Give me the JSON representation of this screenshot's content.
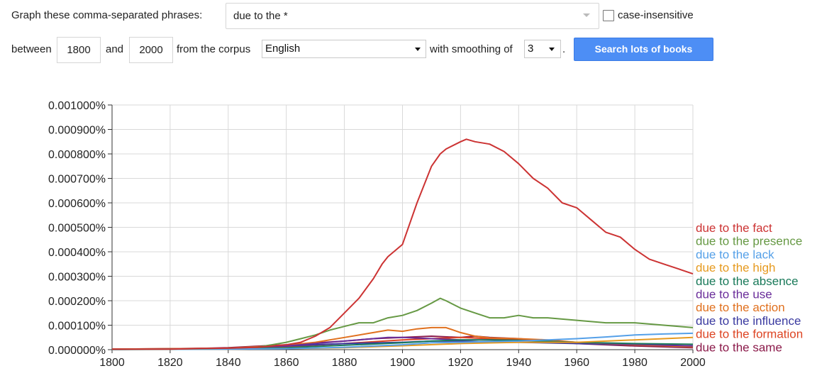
{
  "form": {
    "phrases_label": "Graph these comma-separated phrases:",
    "phrases_value": "due to the *",
    "case_label": "case-insensitive",
    "between_label": "between",
    "start_year": "1800",
    "and_label": "and",
    "end_year": "2000",
    "corpus_label": "from the corpus",
    "corpus_value": "English",
    "smoothing_label": "with smoothing of",
    "smoothing_value": "3",
    "period": ".",
    "search_button": "Search lots of books"
  },
  "chart_data": {
    "type": "line",
    "title": "",
    "xlabel": "",
    "ylabel": "",
    "xlim": [
      1800,
      2000
    ],
    "ylim": [
      0,
      0.001
    ],
    "grid": true,
    "legend_placement": "right",
    "x_ticks": [
      "1800",
      "1820",
      "1840",
      "1860",
      "1880",
      "1900",
      "1920",
      "1940",
      "1960",
      "1980",
      "2000"
    ],
    "y_ticks": [
      "0.000000%",
      "0.000100%",
      "0.000200%",
      "0.000300%",
      "0.000400%",
      "0.000500%",
      "0.000600%",
      "0.000700%",
      "0.000800%",
      "0.000900%",
      "0.001000%"
    ],
    "series": [
      {
        "name": "due to the fact",
        "color": "#cc3333",
        "x": [
          1800,
          1820,
          1830,
          1840,
          1850,
          1860,
          1865,
          1870,
          1875,
          1880,
          1885,
          1890,
          1893,
          1895,
          1900,
          1905,
          1910,
          1913,
          1915,
          1920,
          1922,
          1925,
          1930,
          1935,
          1940,
          1945,
          1950,
          1955,
          1960,
          1965,
          1970,
          1975,
          1980,
          1985,
          1990,
          1995,
          2000
        ],
        "y": [
          2e-06,
          2e-06,
          5e-06,
          6e-06,
          1e-05,
          2e-05,
          3e-05,
          5.5e-05,
          9e-05,
          0.00015,
          0.00021,
          0.00029,
          0.00035,
          0.00038,
          0.00043,
          0.0006,
          0.00075,
          0.0008,
          0.00082,
          0.00085,
          0.00086,
          0.00085,
          0.00084,
          0.00081,
          0.00076,
          0.0007,
          0.00066,
          0.0006,
          0.00058,
          0.00053,
          0.00048,
          0.00046,
          0.00041,
          0.00037,
          0.00035,
          0.00033,
          0.00031
        ]
      },
      {
        "name": "due to the presence",
        "color": "#669944",
        "x": [
          1800,
          1820,
          1840,
          1850,
          1860,
          1865,
          1870,
          1875,
          1880,
          1885,
          1890,
          1895,
          1900,
          1905,
          1910,
          1913,
          1915,
          1920,
          1925,
          1930,
          1935,
          1940,
          1945,
          1950,
          1960,
          1970,
          1980,
          1990,
          2000
        ],
        "y": [
          2e-06,
          2e-06,
          6e-06,
          1e-05,
          3e-05,
          4.5e-05,
          6e-05,
          8e-05,
          9.5e-05,
          0.00011,
          0.00011,
          0.00013,
          0.00014,
          0.00016,
          0.00019,
          0.00021,
          0.0002,
          0.00017,
          0.00015,
          0.00013,
          0.00013,
          0.00014,
          0.00013,
          0.00013,
          0.00012,
          0.00011,
          0.00011,
          0.0001,
          9e-05
        ]
      },
      {
        "name": "due to the lack",
        "color": "#55a0e8",
        "x": [
          1800,
          1840,
          1860,
          1880,
          1900,
          1910,
          1920,
          1930,
          1940,
          1950,
          1960,
          1970,
          1980,
          1990,
          2000
        ],
        "y": [
          1e-06,
          2e-06,
          4e-06,
          1e-05,
          2e-05,
          2.8e-05,
          3e-05,
          3.3e-05,
          3.5e-05,
          4e-05,
          4.5e-05,
          5.2e-05,
          6e-05,
          6.4e-05,
          6.7e-05
        ]
      },
      {
        "name": "due to the high",
        "color": "#e69a1f",
        "x": [
          1800,
          1840,
          1860,
          1880,
          1900,
          1920,
          1940,
          1960,
          1980,
          1990,
          2000
        ],
        "y": [
          1e-06,
          2e-06,
          4e-06,
          8e-06,
          1.6e-05,
          2.5e-05,
          3e-05,
          3e-05,
          4e-05,
          4.5e-05,
          5e-05
        ]
      },
      {
        "name": "due to the absence",
        "color": "#1a7a5a",
        "x": [
          1800,
          1840,
          1860,
          1880,
          1900,
          1910,
          1920,
          1930,
          1940,
          1960,
          1980,
          2000
        ],
        "y": [
          1e-06,
          3e-06,
          8e-06,
          1.8e-05,
          2.8e-05,
          3.5e-05,
          4e-05,
          4e-05,
          3.8e-05,
          3e-05,
          2.5e-05,
          2.2e-05
        ]
      },
      {
        "name": "due to the use",
        "color": "#6a2d9a",
        "x": [
          1800,
          1840,
          1860,
          1880,
          1895,
          1900,
          1910,
          1920,
          1930,
          1940,
          1960,
          1980,
          2000
        ],
        "y": [
          1e-06,
          5e-06,
          1.5e-05,
          3.5e-05,
          5e-05,
          5e-05,
          4.5e-05,
          4e-05,
          4e-05,
          3.8e-05,
          3e-05,
          2.2e-05,
          1.5e-05
        ]
      },
      {
        "name": "due to the action",
        "color": "#e0701e",
        "x": [
          1800,
          1840,
          1860,
          1870,
          1880,
          1890,
          1895,
          1900,
          1905,
          1910,
          1915,
          1920,
          1925,
          1930,
          1940,
          1950,
          1960,
          1980,
          2000
        ],
        "y": [
          2e-06,
          6e-06,
          1.8e-05,
          3e-05,
          5e-05,
          7e-05,
          8e-05,
          7.5e-05,
          8.5e-05,
          9e-05,
          9e-05,
          7e-05,
          5.5e-05,
          4.8e-05,
          4.5e-05,
          4e-05,
          3e-05,
          2e-05,
          1.2e-05
        ]
      },
      {
        "name": "due to the influence",
        "color": "#3a3aa0",
        "x": [
          1800,
          1840,
          1860,
          1880,
          1900,
          1910,
          1920,
          1930,
          1940,
          1960,
          1980,
          2000
        ],
        "y": [
          1e-06,
          6e-06,
          1.5e-05,
          2.5e-05,
          3e-05,
          3.5e-05,
          3.5e-05,
          3e-05,
          3e-05,
          2.5e-05,
          2e-05,
          1.5e-05
        ]
      },
      {
        "name": "due to the formation",
        "color": "#dd4422",
        "x": [
          1800,
          1840,
          1860,
          1880,
          1900,
          1910,
          1920,
          1930,
          1940,
          1960,
          1980,
          2000
        ],
        "y": [
          1e-06,
          5e-06,
          1.2e-05,
          2.5e-05,
          4e-05,
          4.5e-05,
          5e-05,
          4.5e-05,
          4e-05,
          3e-05,
          2e-05,
          1.5e-05
        ]
      },
      {
        "name": "due to the same",
        "color": "#8b1a4a",
        "x": [
          1800,
          1830,
          1840,
          1860,
          1880,
          1890,
          1900,
          1910,
          1920,
          1925,
          1930,
          1940,
          1950,
          1960,
          1980,
          2000
        ],
        "y": [
          2e-06,
          5e-06,
          8e-06,
          2e-05,
          3.5e-05,
          4.5e-05,
          5e-05,
          5.5e-05,
          5e-05,
          5.5e-05,
          5e-05,
          4.5e-05,
          3.5e-05,
          2.5e-05,
          1.5e-05,
          8e-06
        ]
      }
    ]
  }
}
